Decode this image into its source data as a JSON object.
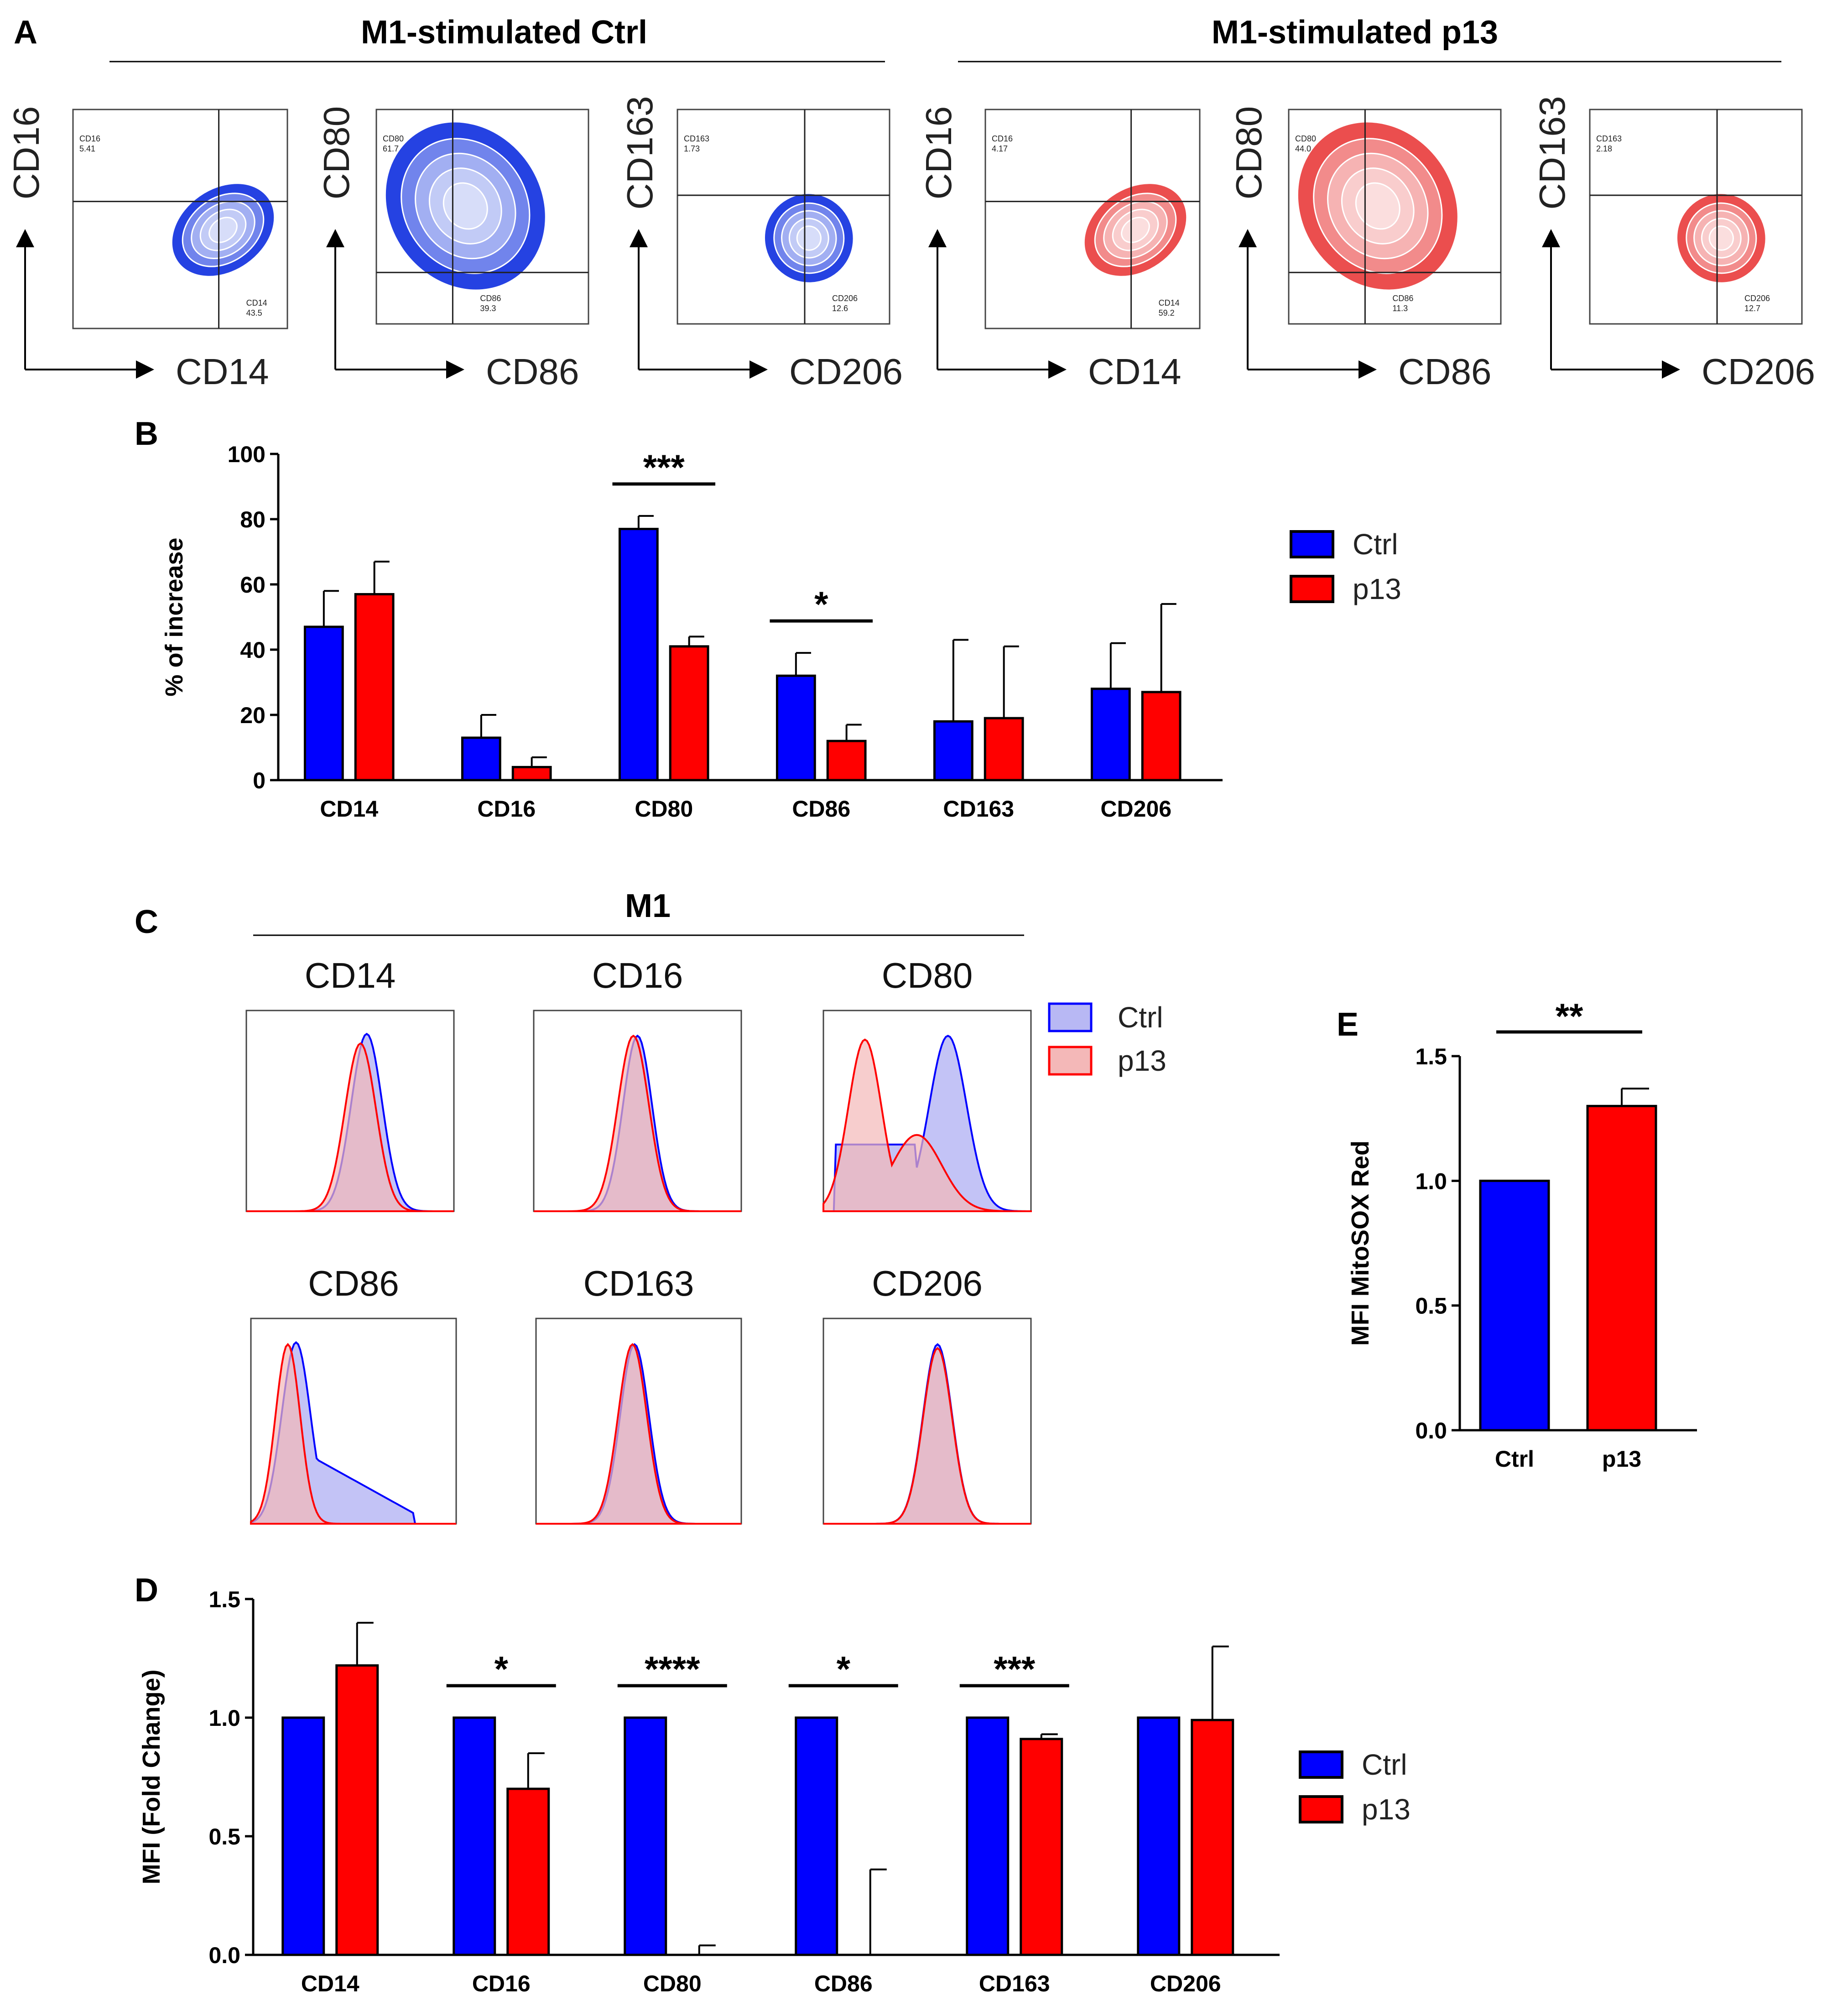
{
  "panels": {
    "A": "A",
    "B": "B",
    "C": "C",
    "D": "D",
    "E": "E"
  },
  "colors": {
    "ctrl": "#0000ff",
    "p13": "#ff0000",
    "ctrl_fill": "#b8b8f4",
    "p13_fill": "#f4b8b8",
    "overlap": "#9a6ab4"
  },
  "panelA": {
    "groups": [
      {
        "title": "M1-stimulated Ctrl",
        "color": "#0022dd",
        "plots": [
          {
            "y_axis": "CD16",
            "x_axis": "CD14",
            "gates": [
              {
                "name": "CD16",
                "value": "5.41"
              },
              {
                "name": "CD14",
                "value": "43.5"
              }
            ]
          },
          {
            "y_axis": "CD80",
            "x_axis": "CD86",
            "gates": [
              {
                "name": "CD80",
                "value": "61.7"
              },
              {
                "name": "CD86",
                "value": "39.3"
              }
            ]
          },
          {
            "y_axis": "CD163",
            "x_axis": "CD206",
            "gates": [
              {
                "name": "CD163",
                "value": "1.73"
              },
              {
                "name": "CD206",
                "value": "12.6"
              }
            ]
          }
        ]
      },
      {
        "title": "M1-stimulated p13",
        "color": "#e83030",
        "plots": [
          {
            "y_axis": "CD16",
            "x_axis": "CD14",
            "gates": [
              {
                "name": "CD16",
                "value": "4.17"
              },
              {
                "name": "CD14",
                "value": "59.2"
              }
            ]
          },
          {
            "y_axis": "CD80",
            "x_axis": "CD86",
            "gates": [
              {
                "name": "CD80",
                "value": "44.0"
              },
              {
                "name": "CD86",
                "value": "11.3"
              }
            ]
          },
          {
            "y_axis": "CD163",
            "x_axis": "CD206",
            "gates": [
              {
                "name": "CD163",
                "value": "2.18"
              },
              {
                "name": "CD206",
                "value": "12.7"
              }
            ]
          }
        ]
      }
    ]
  },
  "panelC": {
    "title": "M1",
    "legend": [
      "Ctrl",
      "p13"
    ],
    "histograms": [
      {
        "marker": "CD14",
        "ctrl": {
          "peak": 0.58,
          "width": 0.075,
          "height": 0.93
        },
        "p13": {
          "peak": 0.55,
          "width": 0.075,
          "height": 0.88
        }
      },
      {
        "marker": "CD16",
        "ctrl": {
          "peak": 0.5,
          "width": 0.07,
          "height": 0.92
        },
        "p13": {
          "peak": 0.48,
          "width": 0.075,
          "height": 0.92
        }
      },
      {
        "marker": "CD80",
        "ctrl": {
          "peak": 0.6,
          "width": 0.09,
          "height": 0.92
        },
        "p13": {
          "peak": 0.2,
          "width": 0.08,
          "height": 0.9
        }
      },
      {
        "marker": "CD86",
        "ctrl": {
          "peak": 0.22,
          "width": 0.07,
          "height": 0.93
        },
        "p13": {
          "peak": 0.18,
          "width": 0.06,
          "height": 0.92
        }
      },
      {
        "marker": "CD163",
        "ctrl": {
          "peak": 0.48,
          "width": 0.07,
          "height": 0.92
        },
        "p13": {
          "peak": 0.47,
          "width": 0.07,
          "height": 0.92
        }
      },
      {
        "marker": "CD206",
        "ctrl": {
          "peak": 0.55,
          "width": 0.07,
          "height": 0.92
        },
        "p13": {
          "peak": 0.55,
          "width": 0.07,
          "height": 0.9
        }
      }
    ]
  },
  "chart_data": [
    {
      "id": "B",
      "type": "bar",
      "categories": [
        "CD14",
        "CD16",
        "CD80",
        "CD86",
        "CD163",
        "CD206"
      ],
      "series": [
        {
          "name": "Ctrl",
          "values": [
            47,
            13,
            77,
            32,
            18,
            28
          ],
          "errors": [
            11,
            7,
            4,
            7,
            25,
            14
          ]
        },
        {
          "name": "p13",
          "values": [
            57,
            4,
            41,
            12,
            19,
            27
          ],
          "errors": [
            10,
            3,
            3,
            5,
            22,
            27
          ]
        }
      ],
      "ylabel": "% of increase",
      "ylim": [
        0,
        100
      ],
      "yticks": [
        "0",
        "20",
        "40",
        "60",
        "80",
        "100"
      ],
      "significance": [
        {
          "category": "CD80",
          "label": "***"
        },
        {
          "category": "CD86",
          "label": "*"
        }
      ],
      "legend": [
        "Ctrl",
        "p13"
      ]
    },
    {
      "id": "D",
      "type": "bar",
      "categories": [
        "CD14",
        "CD16",
        "CD80",
        "CD86",
        "CD163",
        "CD206"
      ],
      "series": [
        {
          "name": "Ctrl",
          "values": [
            1.0,
            1.0,
            1.0,
            1.0,
            1.0,
            1.0
          ],
          "errors": [
            0,
            0,
            0,
            0,
            0,
            0
          ]
        },
        {
          "name": "p13",
          "values": [
            1.22,
            0.7,
            0.0,
            0.0,
            0.91,
            0.99
          ],
          "errors": [
            0.18,
            0.15,
            0.04,
            0.36,
            0.02,
            0.31
          ]
        }
      ],
      "ylabel": "MFI (Fold Change)",
      "ylim": [
        0,
        1.5
      ],
      "yticks": [
        "0.0",
        "0.5",
        "1.0",
        "1.5"
      ],
      "significance": [
        {
          "category": "CD16",
          "label": "*"
        },
        {
          "category": "CD80",
          "label": "****"
        },
        {
          "category": "CD86",
          "label": "*"
        },
        {
          "category": "CD163",
          "label": "***"
        }
      ],
      "legend": [
        "Ctrl",
        "p13"
      ]
    },
    {
      "id": "E",
      "type": "bar",
      "categories": [
        "Ctrl",
        "p13"
      ],
      "values": [
        1.0,
        1.3
      ],
      "errors": [
        0,
        0.07
      ],
      "ylabel": "MFI MitoSOX Red",
      "ylim": [
        0,
        1.5
      ],
      "yticks": [
        "0.0",
        "0.5",
        "1.0",
        "1.5"
      ],
      "significance": [
        {
          "label": "**"
        }
      ]
    }
  ]
}
